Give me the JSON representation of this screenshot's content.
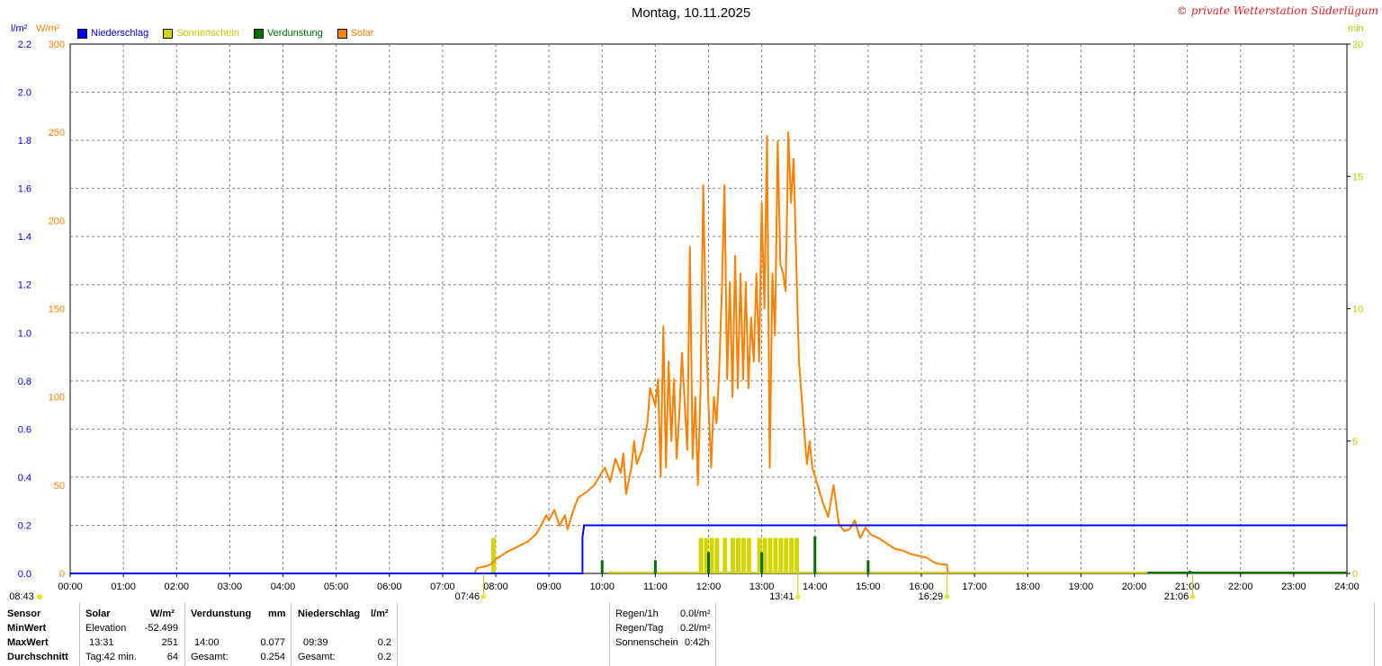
{
  "header": {
    "title": "Montag, 10.11.2025",
    "copyright": "© private Wetterstation Süderlügum",
    "unit_rain": "l/m²",
    "unit_solar": "W/m²",
    "unit_min": "min"
  },
  "colors": {
    "rain": "#0000ff",
    "sun": "#d4d400",
    "evap": "#007000",
    "solar": "#ff8000",
    "grid": "#808080",
    "sunlabel": "#c8c800"
  },
  "legend": [
    {
      "label": "Niederschlag",
      "color": "#0000ff"
    },
    {
      "label": "Sonnenschein",
      "color": "#d4d400"
    },
    {
      "label": "Verdunstung",
      "color": "#007000"
    },
    {
      "label": "Solar",
      "color": "#ff8000"
    }
  ],
  "chart_data": {
    "type": "line",
    "x_range": [
      "00:00",
      "24:00"
    ],
    "x_ticks": [
      "00:00",
      "01:00",
      "02:00",
      "03:00",
      "04:00",
      "05:00",
      "06:00",
      "07:00",
      "08:00",
      "09:00",
      "10:00",
      "11:00",
      "12:00",
      "13:00",
      "14:00",
      "15:00",
      "16:00",
      "17:00",
      "18:00",
      "19:00",
      "20:00",
      "21:00",
      "22:00",
      "23:00",
      "24:00"
    ],
    "y_left_rain": {
      "unit": "l/m²",
      "range": [
        0,
        2.2
      ],
      "ticks": [
        "0.0",
        "0.2",
        "0.4",
        "0.6",
        "0.8",
        "1.0",
        "1.2",
        "1.4",
        "1.6",
        "1.8",
        "2.0",
        "2.2"
      ]
    },
    "y_left_solar": {
      "unit": "W/m²",
      "range": [
        0,
        300
      ],
      "ticks": [
        "0",
        "50",
        "100",
        "150",
        "200",
        "250",
        "300"
      ]
    },
    "y_right_min": {
      "unit": "min",
      "range": [
        0,
        20
      ],
      "ticks": [
        "0",
        "5",
        "10",
        "15",
        "20"
      ]
    },
    "series": [
      {
        "name": "Solar",
        "unit": "W/m²",
        "points": [
          [
            7.6,
            0
          ],
          [
            7.65,
            3
          ],
          [
            7.8,
            4
          ],
          [
            7.9,
            5
          ],
          [
            8.0,
            8
          ],
          [
            8.2,
            12
          ],
          [
            8.4,
            15
          ],
          [
            8.6,
            18
          ],
          [
            8.75,
            22
          ],
          [
            8.85,
            27
          ],
          [
            8.95,
            33
          ],
          [
            9.0,
            30
          ],
          [
            9.1,
            36
          ],
          [
            9.2,
            27
          ],
          [
            9.3,
            33
          ],
          [
            9.35,
            25
          ],
          [
            9.45,
            35
          ],
          [
            9.55,
            43
          ],
          [
            9.7,
            46
          ],
          [
            9.85,
            50
          ],
          [
            9.95,
            55
          ],
          [
            10.05,
            60
          ],
          [
            10.15,
            52
          ],
          [
            10.25,
            65
          ],
          [
            10.35,
            57
          ],
          [
            10.4,
            68
          ],
          [
            10.45,
            45
          ],
          [
            10.55,
            60
          ],
          [
            10.6,
            75
          ],
          [
            10.65,
            62
          ],
          [
            10.75,
            70
          ],
          [
            10.85,
            85
          ],
          [
            10.9,
            105
          ],
          [
            11.0,
            95
          ],
          [
            11.05,
            110
          ],
          [
            11.1,
            55
          ],
          [
            11.15,
            140
          ],
          [
            11.2,
            60
          ],
          [
            11.25,
            120
          ],
          [
            11.3,
            75
          ],
          [
            11.35,
            110
          ],
          [
            11.4,
            65
          ],
          [
            11.45,
            90
          ],
          [
            11.5,
            125
          ],
          [
            11.6,
            70
          ],
          [
            11.65,
            185
          ],
          [
            11.7,
            65
          ],
          [
            11.75,
            100
          ],
          [
            11.8,
            50
          ],
          [
            11.85,
            105
          ],
          [
            11.9,
            220
          ],
          [
            11.95,
            140
          ],
          [
            12.0,
            95
          ],
          [
            12.05,
            60
          ],
          [
            12.1,
            100
          ],
          [
            12.15,
            85
          ],
          [
            12.2,
            115
          ],
          [
            12.25,
            160
          ],
          [
            12.3,
            220
          ],
          [
            12.35,
            110
          ],
          [
            12.4,
            165
          ],
          [
            12.45,
            100
          ],
          [
            12.5,
            180
          ],
          [
            12.55,
            105
          ],
          [
            12.6,
            170
          ],
          [
            12.65,
            110
          ],
          [
            12.7,
            165
          ],
          [
            12.75,
            105
          ],
          [
            12.8,
            145
          ],
          [
            12.85,
            120
          ],
          [
            12.9,
            170
          ],
          [
            12.95,
            120
          ],
          [
            13.0,
            210
          ],
          [
            13.05,
            150
          ],
          [
            13.1,
            248
          ],
          [
            13.15,
            60
          ],
          [
            13.2,
            170
          ],
          [
            13.25,
            135
          ],
          [
            13.3,
            245
          ],
          [
            13.35,
            175
          ],
          [
            13.4,
            170
          ],
          [
            13.45,
            160
          ],
          [
            13.5,
            250
          ],
          [
            13.55,
            210
          ],
          [
            13.6,
            235
          ],
          [
            13.65,
            175
          ],
          [
            13.7,
            120
          ],
          [
            13.75,
            100
          ],
          [
            13.8,
            80
          ],
          [
            13.85,
            62
          ],
          [
            13.9,
            75
          ],
          [
            13.95,
            60
          ],
          [
            14.05,
            50
          ],
          [
            14.15,
            40
          ],
          [
            14.25,
            32
          ],
          [
            14.35,
            50
          ],
          [
            14.45,
            28
          ],
          [
            14.55,
            24
          ],
          [
            14.65,
            25
          ],
          [
            14.75,
            30
          ],
          [
            14.85,
            20
          ],
          [
            14.95,
            26
          ],
          [
            15.05,
            22
          ],
          [
            15.2,
            20
          ],
          [
            15.35,
            17
          ],
          [
            15.5,
            14
          ],
          [
            15.65,
            13
          ],
          [
            15.8,
            11
          ],
          [
            15.95,
            10
          ],
          [
            16.1,
            9
          ],
          [
            16.25,
            6
          ],
          [
            16.4,
            5
          ],
          [
            16.48,
            5
          ],
          [
            16.5,
            0
          ]
        ]
      },
      {
        "name": "Niederschlag",
        "unit": "l/m²",
        "points": [
          [
            0,
            0
          ],
          [
            9.63,
            0
          ],
          [
            9.63,
            0.15
          ],
          [
            9.66,
            0.2
          ],
          [
            24,
            0.2
          ]
        ]
      },
      {
        "name": "Sonnenschein",
        "unit": "min",
        "bars": [
          [
            7.95,
            1
          ],
          [
            11.85,
            1
          ],
          [
            11.95,
            1
          ],
          [
            12.05,
            1
          ],
          [
            12.15,
            1
          ],
          [
            12.3,
            1
          ],
          [
            12.45,
            1
          ],
          [
            12.55,
            1
          ],
          [
            12.65,
            1
          ],
          [
            12.75,
            1
          ],
          [
            12.95,
            1
          ],
          [
            13.05,
            1
          ],
          [
            13.15,
            1
          ],
          [
            13.25,
            1
          ],
          [
            13.35,
            1
          ],
          [
            13.45,
            1
          ],
          [
            13.55,
            1
          ],
          [
            13.65,
            1
          ]
        ]
      },
      {
        "name": "Verdunstung",
        "unit": "mm",
        "bars": [
          [
            10.0,
            0.5
          ],
          [
            11.0,
            0.5
          ],
          [
            12.0,
            0.8
          ],
          [
            13.0,
            0.8
          ],
          [
            14.0,
            1.4
          ],
          [
            15.0,
            0.5
          ],
          [
            21.05,
            0.1
          ]
        ]
      }
    ],
    "sun_markers": [
      {
        "label": "08:43",
        "pos": "left"
      },
      {
        "label": "07:46",
        "time": 7.77
      },
      {
        "label": "13:41",
        "time": 13.68
      },
      {
        "label": "16:29",
        "time": 16.48
      },
      {
        "label": "21:06",
        "time": 21.1
      }
    ]
  },
  "stats": {
    "col1": [
      "Sensor",
      "MinWert",
      "MaxWert",
      "Durchschnitt"
    ],
    "solar": {
      "header": "Solar",
      "unit": "W/m²",
      "min_label": "Elevation",
      "min_value": "-52.499",
      "max_label": "13:31",
      "max_value": "251",
      "avg_label": "Tag:42 min.",
      "avg_value": "64"
    },
    "evap": {
      "header": "Verdunstung",
      "unit": "mm",
      "max_label": "14:00",
      "max_value": "0.077",
      "avg_label": "Gesamt:",
      "avg_value": "0.254"
    },
    "rain": {
      "header": "Niederschlag",
      "unit": "l/m²",
      "max_label": "09:39",
      "max_value": "0.2",
      "avg_label": "Gesamt:",
      "avg_value": "0.2"
    },
    "extra": [
      {
        "label": "Regen/1h",
        "value": "0.0l/m²"
      },
      {
        "label": "Regen/Tag",
        "value": "0.2l/m²"
      },
      {
        "label": "Sonnenschein",
        "value": "0:42h"
      }
    ]
  }
}
